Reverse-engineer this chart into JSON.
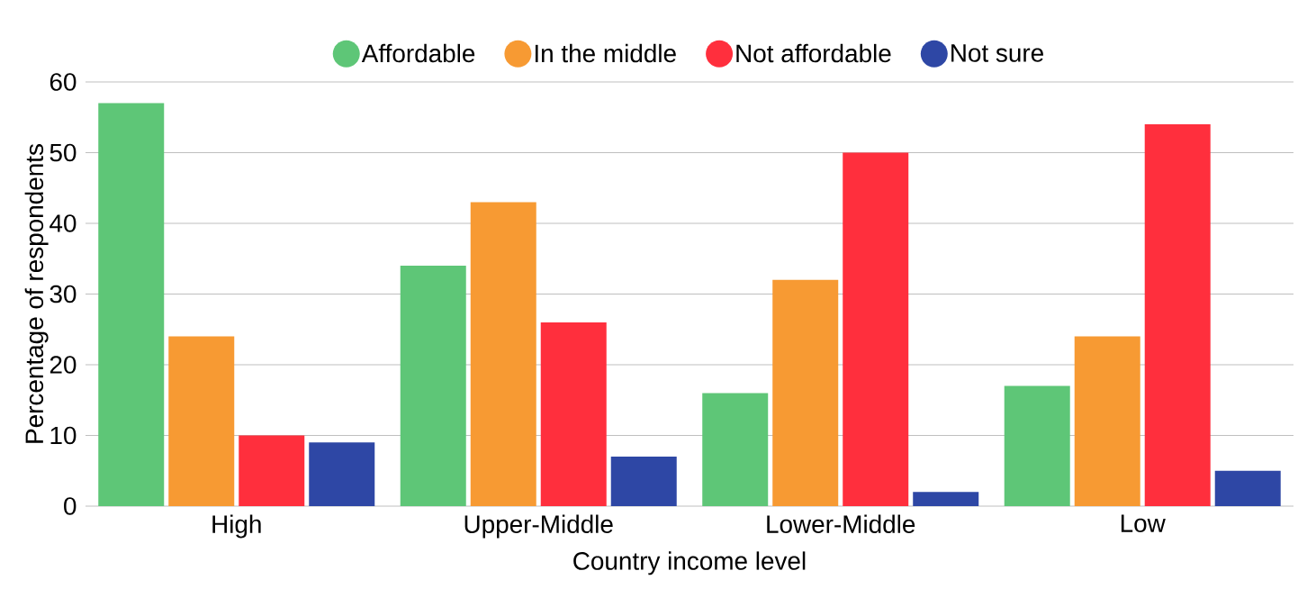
{
  "chart_data": {
    "type": "bar",
    "xlabel": "Country income level",
    "ylabel": "Percentage of respondents",
    "categories": [
      "High",
      "Upper-Middle",
      "Lower-Middle",
      "Low"
    ],
    "series": [
      {
        "name": "Affordable",
        "color": "#5ec677",
        "values": [
          57,
          34,
          16,
          17
        ]
      },
      {
        "name": "In the middle",
        "color": "#f79a33",
        "values": [
          24,
          43,
          32,
          24
        ]
      },
      {
        "name": "Not affordable",
        "color": "#ff2f3d",
        "values": [
          10,
          26,
          50,
          54
        ]
      },
      {
        "name": "Not sure",
        "color": "#2e47a5",
        "values": [
          9,
          7,
          2,
          5
        ]
      }
    ],
    "ylim": [
      0,
      60
    ],
    "yticks": [
      0,
      10,
      20,
      30,
      40,
      50,
      60
    ],
    "grid": "y",
    "legend": "top"
  }
}
